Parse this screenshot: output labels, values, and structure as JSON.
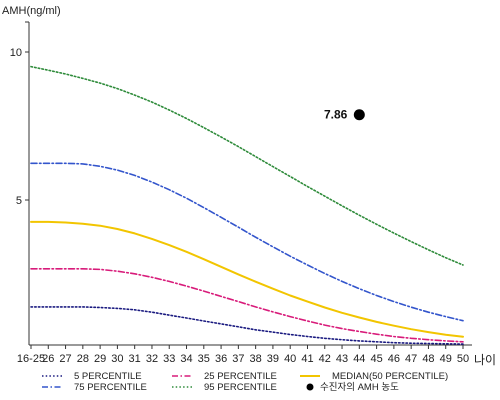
{
  "chart_data": {
    "type": "line",
    "ylabel": "AMH(ng/ml)",
    "xlabel": "나이",
    "y_ticks": [
      "10",
      "5"
    ],
    "ylim": [
      0,
      11
    ],
    "categories": [
      "16-25",
      "26",
      "27",
      "28",
      "29",
      "30",
      "31",
      "32",
      "33",
      "34",
      "35",
      "36",
      "37",
      "38",
      "39",
      "40",
      "41",
      "42",
      "43",
      "44",
      "45",
      "46",
      "47",
      "48",
      "49",
      "50"
    ],
    "grid": false,
    "legend_position": "bottom",
    "series": [
      {
        "name": "5 PERCENTILE",
        "color": "#1a1a80",
        "dash": "dotted",
        "values": [
          1.3,
          1.3,
          1.3,
          1.3,
          1.28,
          1.25,
          1.2,
          1.12,
          1.02,
          0.92,
          0.82,
          0.72,
          0.62,
          0.52,
          0.44,
          0.36,
          0.29,
          0.23,
          0.18,
          0.14,
          0.11,
          0.08,
          0.06,
          0.05,
          0.04,
          0.03
        ]
      },
      {
        "name": "25 PERCENTILE",
        "color": "#d81b7a",
        "dash": "dashdot",
        "values": [
          2.6,
          2.6,
          2.6,
          2.6,
          2.58,
          2.52,
          2.43,
          2.31,
          2.17,
          2.01,
          1.84,
          1.66,
          1.48,
          1.3,
          1.13,
          0.97,
          0.82,
          0.68,
          0.56,
          0.46,
          0.37,
          0.29,
          0.23,
          0.18,
          0.14,
          0.11
        ]
      },
      {
        "name": "MEDIAN(50 PERCENTILE)",
        "color": "#f2c500",
        "dash": "solid",
        "values": [
          4.2,
          4.2,
          4.18,
          4.14,
          4.07,
          3.96,
          3.81,
          3.62,
          3.41,
          3.18,
          2.93,
          2.67,
          2.41,
          2.16,
          1.92,
          1.69,
          1.48,
          1.28,
          1.1,
          0.94,
          0.79,
          0.66,
          0.54,
          0.44,
          0.35,
          0.28
        ]
      },
      {
        "name": "75 PERCENTILE",
        "color": "#3355cc",
        "dash": "dashdot",
        "values": [
          6.2,
          6.2,
          6.2,
          6.18,
          6.1,
          5.97,
          5.79,
          5.56,
          5.3,
          5.01,
          4.69,
          4.36,
          4.02,
          3.68,
          3.35,
          3.03,
          2.73,
          2.44,
          2.17,
          1.92,
          1.69,
          1.48,
          1.29,
          1.12,
          0.97,
          0.83
        ]
      },
      {
        "name": "95 PERCENTILE",
        "color": "#2e8b3a",
        "dash": "dotted",
        "values": [
          9.5,
          9.38,
          9.25,
          9.1,
          8.94,
          8.75,
          8.53,
          8.29,
          8.02,
          7.73,
          7.42,
          7.1,
          6.77,
          6.43,
          6.09,
          5.75,
          5.41,
          5.08,
          4.75,
          4.43,
          4.12,
          3.82,
          3.53,
          3.25,
          2.98,
          2.73
        ]
      }
    ],
    "highlight": {
      "name": "수진자의 AMH 농도",
      "x": "44",
      "y": 7.86,
      "label": "7.86",
      "color": "#000000"
    },
    "legend_order": [
      "5 PERCENTILE",
      "25 PERCENTILE",
      "MEDIAN(50 PERCENTILE)",
      "75 PERCENTILE",
      "95 PERCENTILE",
      "수진자의 AMH 농도"
    ]
  }
}
